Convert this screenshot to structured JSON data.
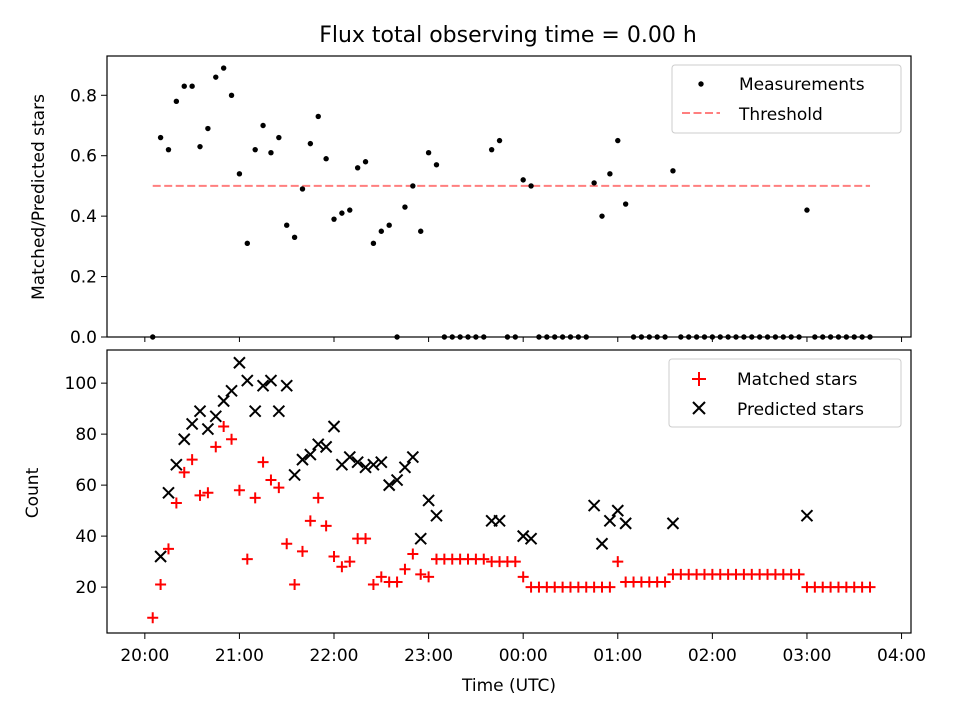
{
  "figure": {
    "title": "Flux total observing time = 0.00 h",
    "xlabel": "Time (UTC)"
  },
  "colors": {
    "measurement": "#000000",
    "threshold": "#ff7f7f",
    "matched": "#ff0000",
    "predicted": "#000000"
  },
  "chart_data": [
    {
      "type": "scatter",
      "title": "Flux total observing time = 0.00 h",
      "ylabel": "Matched/Predicted stars",
      "xlim_hours": [
        19.6,
        28.1
      ],
      "ylim": [
        0,
        0.93
      ],
      "yticks": [
        "0.0",
        "0.2",
        "0.4",
        "0.6",
        "0.8"
      ],
      "legend_position": "top-right",
      "grid": false,
      "series": [
        {
          "name": "Measurements",
          "marker": "dot",
          "x": [
            "20:05",
            "20:10",
            "20:15",
            "20:20",
            "20:25",
            "20:30",
            "20:35",
            "20:40",
            "20:45",
            "20:50",
            "20:55",
            "21:00",
            "21:05",
            "21:10",
            "21:15",
            "21:20",
            "21:25",
            "21:30",
            "21:35",
            "21:40",
            "21:45",
            "21:50",
            "21:55",
            "22:00",
            "22:05",
            "22:10",
            "22:15",
            "22:20",
            "22:25",
            "22:30",
            "22:35",
            "22:40",
            "22:45",
            "22:50",
            "22:55",
            "23:00",
            "23:05",
            "23:10",
            "23:15",
            "23:20",
            "23:25",
            "23:30",
            "23:35",
            "23:40",
            "23:45",
            "23:50",
            "23:55",
            "00:00",
            "00:05",
            "00:10",
            "00:15",
            "00:20",
            "00:25",
            "00:30",
            "00:35",
            "00:40",
            "00:45",
            "00:50",
            "00:55",
            "01:00",
            "01:05",
            "01:10",
            "01:15",
            "01:20",
            "01:25",
            "01:30",
            "01:35",
            "01:40",
            "01:45",
            "01:50",
            "01:55",
            "02:00",
            "02:05",
            "02:10",
            "02:15",
            "02:20",
            "02:25",
            "02:30",
            "02:35",
            "02:40",
            "02:45",
            "02:50",
            "02:55",
            "03:00",
            "03:05",
            "03:10",
            "03:15",
            "03:20",
            "03:25",
            "03:30",
            "03:35",
            "03:40"
          ],
          "y": [
            0,
            0.66,
            0.62,
            0.78,
            0.83,
            0.83,
            0.63,
            0.69,
            0.86,
            0.89,
            0.8,
            0.54,
            0.31,
            0.62,
            0.7,
            0.61,
            0.66,
            0.37,
            0.33,
            0.49,
            0.64,
            0.73,
            0.59,
            0.39,
            0.41,
            0.42,
            0.56,
            0.58,
            0.31,
            0.35,
            0.37,
            0,
            0.43,
            0.5,
            0.35,
            0.61,
            0.57,
            0,
            0,
            0,
            0,
            0,
            0,
            0.62,
            0.65,
            0,
            0,
            0.52,
            0.5,
            0,
            0,
            0,
            0,
            0,
            0,
            0,
            0.51,
            0.4,
            0.54,
            0.65,
            0.44,
            0,
            0,
            0,
            0,
            0,
            0.55,
            0,
            0,
            0,
            0,
            0,
            0,
            0,
            0,
            0,
            0,
            0,
            0,
            0,
            0,
            0,
            0,
            0.42,
            0,
            0,
            0,
            0,
            0,
            0,
            0,
            0
          ]
        },
        {
          "name": "Threshold",
          "type": "line",
          "style": "dashed",
          "x": [
            "20:05",
            "03:40"
          ],
          "y": [
            0.5,
            0.5
          ]
        }
      ]
    },
    {
      "type": "scatter",
      "ylabel": "Count",
      "xlabel": "Time (UTC)",
      "xlim_hours": [
        19.6,
        28.1
      ],
      "ylim": [
        2,
        113
      ],
      "yticks": [
        "20",
        "40",
        "60",
        "80",
        "100"
      ],
      "xticks": [
        "20:00",
        "21:00",
        "22:00",
        "23:00",
        "00:00",
        "01:00",
        "02:00",
        "03:00",
        "04:00"
      ],
      "legend_position": "top-right",
      "grid": false,
      "series": [
        {
          "name": "Matched stars",
          "marker": "plus",
          "x": [
            "20:05",
            "20:10",
            "20:15",
            "20:20",
            "20:25",
            "20:30",
            "20:35",
            "20:40",
            "20:45",
            "20:50",
            "20:55",
            "21:00",
            "21:05",
            "21:10",
            "21:15",
            "21:20",
            "21:25",
            "21:30",
            "21:35",
            "21:40",
            "21:45",
            "21:50",
            "21:55",
            "22:00",
            "22:05",
            "22:10",
            "22:15",
            "22:20",
            "22:25",
            "22:30",
            "22:35",
            "22:40",
            "22:45",
            "22:50",
            "22:55",
            "23:00",
            "23:05",
            "23:10",
            "23:15",
            "23:20",
            "23:25",
            "23:30",
            "23:35",
            "23:40",
            "23:45",
            "23:50",
            "23:55",
            "00:00",
            "00:05",
            "00:10",
            "00:15",
            "00:20",
            "00:25",
            "00:30",
            "00:35",
            "00:40",
            "00:45",
            "00:50",
            "00:55",
            "01:00",
            "01:05",
            "01:10",
            "01:15",
            "01:20",
            "01:25",
            "01:30",
            "01:35",
            "01:40",
            "01:45",
            "01:50",
            "01:55",
            "02:00",
            "02:05",
            "02:10",
            "02:15",
            "02:20",
            "02:25",
            "02:30",
            "02:35",
            "02:40",
            "02:45",
            "02:50",
            "02:55",
            "03:00",
            "03:05",
            "03:10",
            "03:15",
            "03:20",
            "03:25",
            "03:30",
            "03:35",
            "03:40"
          ],
          "y": [
            8,
            21,
            35,
            53,
            65,
            70,
            56,
            57,
            75,
            83,
            78,
            58,
            31,
            55,
            69,
            62,
            59,
            37,
            21,
            34,
            46,
            55,
            44,
            32,
            28,
            30,
            39,
            39,
            21,
            24,
            22,
            22,
            27,
            33,
            25,
            24,
            31,
            31,
            31,
            31,
            31,
            31,
            31,
            30,
            30,
            30,
            30,
            24,
            20,
            20,
            20,
            20,
            20,
            20,
            20,
            20,
            20,
            20,
            20,
            30,
            22,
            22,
            22,
            22,
            22,
            22,
            25,
            25,
            25,
            25,
            25,
            25,
            25,
            25,
            25,
            25,
            25,
            25,
            25,
            25,
            25,
            25,
            25,
            20,
            20,
            20,
            20,
            20,
            20,
            20,
            20,
            20
          ]
        },
        {
          "name": "Predicted stars",
          "marker": "x",
          "x": [
            "20:10",
            "20:15",
            "20:20",
            "20:25",
            "20:30",
            "20:35",
            "20:40",
            "20:45",
            "20:50",
            "20:55",
            "21:00",
            "21:05",
            "21:10",
            "21:15",
            "21:20",
            "21:25",
            "21:30",
            "21:35",
            "21:40",
            "21:45",
            "21:50",
            "21:55",
            "22:00",
            "22:05",
            "22:10",
            "22:15",
            "22:20",
            "22:25",
            "22:30",
            "22:35",
            "22:40",
            "22:45",
            "22:50",
            "22:55",
            "23:00",
            "23:05",
            "23:40",
            "23:45",
            "00:00",
            "00:05",
            "00:45",
            "00:50",
            "00:55",
            "01:00",
            "01:05",
            "01:35",
            "03:00"
          ],
          "y": [
            32,
            57,
            68,
            78,
            84,
            89,
            82,
            87,
            93,
            97,
            108,
            101,
            89,
            99,
            101,
            89,
            99,
            64,
            70,
            72,
            76,
            75,
            83,
            68,
            71,
            69,
            67,
            68,
            69,
            60,
            62,
            67,
            71,
            39,
            54,
            48,
            46,
            46,
            40,
            39,
            52,
            37,
            46,
            50,
            45,
            45,
            48
          ]
        }
      ]
    }
  ]
}
